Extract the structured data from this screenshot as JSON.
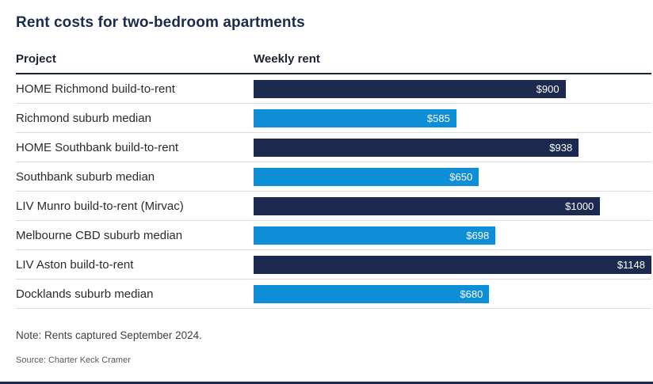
{
  "title": "Rent costs for two-bedroom apartments",
  "columns": {
    "project": "Project",
    "weekly_rent": "Weekly rent"
  },
  "note": "Note: Rents captured September 2024.",
  "source": "Source: Charter Keck Cramer",
  "colors": {
    "navy": "#1b2a4e",
    "blue": "#0f8ed8"
  },
  "chart_data": {
    "type": "bar",
    "orientation": "horizontal",
    "title": "Rent costs for two-bedroom apartments",
    "xlabel": "Weekly rent",
    "ylabel": "Project",
    "xlim": [
      0,
      1148
    ],
    "grid": false,
    "legend": "none",
    "categories": [
      "HOME Richmond build-to-rent",
      "Richmond suburb median",
      "HOME Southbank build-to-rent",
      "Southbank suburb median",
      "LIV Munro build-to-rent (Mirvac)",
      "Melbourne CBD suburb median",
      "LIV Aston build-to-rent",
      "Docklands suburb median"
    ],
    "values": [
      900,
      585,
      938,
      650,
      1000,
      698,
      1148,
      680
    ],
    "value_labels": [
      "$900",
      "$585",
      "$938",
      "$650",
      "$1000",
      "$698",
      "$1148",
      "$680"
    ],
    "bar_colors": [
      "navy",
      "blue",
      "navy",
      "blue",
      "navy",
      "blue",
      "navy",
      "blue"
    ]
  }
}
